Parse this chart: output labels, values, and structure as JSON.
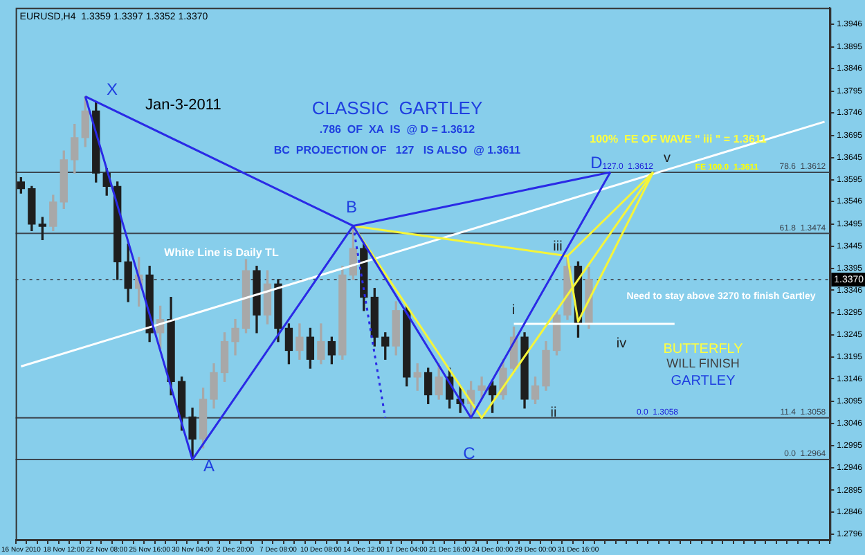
{
  "chart_data": {
    "type": "candlestick",
    "title": "EURUSD,H4  1.3359 1.3397 1.3352 1.3370",
    "colors": [
      "#1e1e1e",
      "#1e1e1e",
      "#1e1e1e",
      "#a8a8a8",
      "#a8a8a8",
      "#a8a8a8",
      "#a8a8a8",
      "#1e1e1e",
      "#1e1e1e",
      "#1e1e1e",
      "#1e1e1e",
      "#a8a8a8",
      "#1e1e1e",
      "#a8a8a8",
      "#1e1e1e",
      "#1e1e1e",
      "#1e1e1e",
      "#a8a8a8",
      "#a8a8a8",
      "#a8a8a8",
      "#a8a8a8",
      "#a8a8a8",
      "#1e1e1e",
      "#a8a8a8",
      "#1e1e1e",
      "#1e1e1e",
      "#a8a8a8",
      "#1e1e1e",
      "#a8a8a8",
      "#1e1e1e",
      "#a8a8a8",
      "#a8a8a8",
      "#1e1e1e",
      "#1e1e1e",
      "#1e1e1e",
      "#a8a8a8",
      "#1e1e1e",
      "#a8a8a8",
      "#1e1e1e",
      "#a8a8a8",
      "#1e1e1e",
      "#1e1e1e",
      "#a8a8a8",
      "#a8a8a8",
      "#1e1e1e",
      "#a8a8a8",
      "#a8a8a8",
      "#1e1e1e",
      "#a8a8a8",
      "#a8a8a8",
      "#a8a8a8",
      "#a8a8a8",
      "#1e1e1e",
      "#a8a8a8",
      null,
      null,
      null,
      null,
      null,
      null,
      null,
      null,
      null,
      null,
      null,
      null,
      null,
      null,
      null,
      null,
      null,
      null,
      null,
      null,
      null,
      null
    ],
    "categories": [
      "16 Nov 2010",
      null,
      null,
      null,
      "18 Nov 12:00",
      null,
      null,
      null,
      "22 Nov 08:00",
      null,
      null,
      null,
      "25 Nov 16:00",
      null,
      null,
      null,
      "30 Nov 04:00",
      null,
      null,
      null,
      "2 Dec 20:00",
      null,
      null,
      null,
      "7 Dec 08:00",
      null,
      null,
      null,
      "10 Dec 08:00",
      null,
      null,
      null,
      "14 Dec 12:00",
      null,
      null,
      null,
      "17 Dec 04:00",
      null,
      null,
      null,
      "21 Dec 16:00",
      null,
      null,
      null,
      "24 Dec 00:00",
      null,
      null,
      null,
      "29 Dec 00:00",
      null,
      null,
      null,
      "31 Dec 16:00",
      null,
      null,
      null,
      null,
      null,
      null,
      null,
      null,
      null,
      null,
      null,
      null,
      null,
      null,
      null,
      null,
      null,
      null,
      null,
      null,
      null,
      null,
      null
    ],
    "ohlc": [
      [
        1.359,
        1.36,
        1.3565,
        1.3575
      ],
      [
        1.3575,
        1.358,
        1.348,
        1.3495
      ],
      [
        1.3495,
        1.351,
        1.346,
        1.349
      ],
      [
        1.349,
        1.356,
        1.348,
        1.3545
      ],
      [
        1.3545,
        1.366,
        1.353,
        1.364
      ],
      [
        1.364,
        1.372,
        1.361,
        1.369
      ],
      [
        1.369,
        1.3783,
        1.367,
        1.375
      ],
      [
        1.375,
        1.377,
        1.359,
        1.361
      ],
      [
        1.361,
        1.362,
        1.356,
        1.358
      ],
      [
        1.358,
        1.359,
        1.337,
        1.341
      ],
      [
        1.341,
        1.345,
        1.332,
        1.335
      ],
      [
        1.335,
        1.342,
        1.331,
        1.338
      ],
      [
        1.338,
        1.34,
        1.323,
        1.325
      ],
      [
        1.325,
        1.331,
        1.3215,
        1.328
      ],
      [
        1.328,
        1.333,
        1.311,
        1.314
      ],
      [
        1.314,
        1.315,
        1.303,
        1.306
      ],
      [
        1.306,
        1.308,
        1.2964,
        1.301
      ],
      [
        1.301,
        1.3125,
        1.299,
        1.31
      ],
      [
        1.31,
        1.318,
        1.308,
        1.316
      ],
      [
        1.316,
        1.325,
        1.314,
        1.323
      ],
      [
        1.323,
        1.328,
        1.32,
        1.326
      ],
      [
        1.326,
        1.3415,
        1.325,
        1.339
      ],
      [
        1.339,
        1.34,
        1.325,
        1.329
      ],
      [
        1.329,
        1.339,
        1.327,
        1.336
      ],
      [
        1.336,
        1.337,
        1.323,
        1.326
      ],
      [
        1.326,
        1.327,
        1.318,
        1.321
      ],
      [
        1.321,
        1.327,
        1.319,
        1.324
      ],
      [
        1.324,
        1.326,
        1.317,
        1.319
      ],
      [
        1.319,
        1.327,
        1.318,
        1.323
      ],
      [
        1.323,
        1.324,
        1.318,
        1.32
      ],
      [
        1.32,
        1.34,
        1.319,
        1.338
      ],
      [
        1.338,
        1.3491,
        1.337,
        1.344
      ],
      [
        1.344,
        1.345,
        1.33,
        1.333
      ],
      [
        1.333,
        1.335,
        1.322,
        1.324
      ],
      [
        1.324,
        1.325,
        1.319,
        1.322
      ],
      [
        1.322,
        1.332,
        1.32,
        1.33
      ],
      [
        1.33,
        1.331,
        1.313,
        1.315
      ],
      [
        1.315,
        1.318,
        1.312,
        1.316
      ],
      [
        1.316,
        1.317,
        1.309,
        1.311
      ],
      [
        1.311,
        1.318,
        1.31,
        1.315
      ],
      [
        1.315,
        1.317,
        1.308,
        1.31
      ],
      [
        1.31,
        1.313,
        1.307,
        1.309
      ],
      [
        1.309,
        1.314,
        1.3058,
        1.312
      ],
      [
        1.312,
        1.315,
        1.31,
        1.313
      ],
      [
        1.313,
        1.314,
        1.307,
        1.311
      ],
      [
        1.311,
        1.319,
        1.31,
        1.317
      ],
      [
        1.317,
        1.3263,
        1.316,
        1.324
      ],
      [
        1.324,
        1.325,
        1.308,
        1.31
      ],
      [
        1.31,
        1.315,
        1.309,
        1.313
      ],
      [
        1.313,
        1.323,
        1.312,
        1.321
      ],
      [
        1.321,
        1.33,
        1.32,
        1.329
      ],
      [
        1.329,
        1.3423,
        1.328,
        1.34
      ],
      [
        1.34,
        1.341,
        1.324,
        1.327
      ],
      [
        1.327,
        1.3397,
        1.326,
        1.337
      ],
      null,
      null,
      null,
      null,
      null,
      null,
      null,
      null,
      null,
      null,
      null,
      null,
      null,
      null,
      null,
      null,
      null,
      null,
      null,
      null,
      null,
      null
    ],
    "series": [
      {
        "type": "line",
        "color": "#2a2ae6",
        "values": [
          null,
          null,
          null,
          null,
          null,
          null,
          1.3783,
          null,
          null,
          null,
          null,
          null,
          null,
          null,
          null,
          null,
          1.2964,
          null,
          null,
          null,
          null,
          null,
          null,
          null,
          null,
          null,
          null,
          null,
          null,
          null,
          null,
          1.3491,
          null,
          null,
          null,
          null,
          null,
          null,
          null,
          null,
          null,
          null,
          1.3058,
          null,
          null,
          null,
          null,
          null,
          null,
          null,
          null,
          null,
          null,
          null,
          null,
          1.3612,
          null,
          null,
          null,
          null,
          null,
          null,
          null,
          null,
          null,
          null,
          null,
          null,
          null,
          null,
          null,
          null,
          null,
          null,
          null,
          null
        ]
      },
      {
        "type": "line",
        "color": "#2a2ae6",
        "values": [
          null,
          null,
          null,
          null,
          null,
          null,
          1.3783,
          null,
          null,
          null,
          null,
          null,
          null,
          null,
          null,
          null,
          null,
          null,
          null,
          null,
          null,
          null,
          null,
          null,
          null,
          null,
          null,
          null,
          null,
          null,
          null,
          1.3491,
          null,
          null,
          null,
          null,
          null,
          null,
          null,
          null,
          null,
          null,
          null,
          null,
          null,
          null,
          null,
          null,
          null,
          null,
          null,
          null,
          null,
          null,
          null,
          1.3612,
          null,
          null,
          null,
          null,
          null,
          null,
          null,
          null,
          null,
          null,
          null,
          null,
          null,
          null,
          null,
          null,
          null,
          null,
          null,
          null
        ]
      },
      {
        "type": "line",
        "color": "#2a2ae6",
        "line_style": "dotted",
        "values": [
          null,
          null,
          null,
          null,
          null,
          null,
          null,
          null,
          null,
          null,
          null,
          null,
          null,
          null,
          null,
          null,
          null,
          null,
          null,
          null,
          null,
          null,
          null,
          null,
          null,
          null,
          null,
          null,
          null,
          null,
          null,
          1.3491,
          null,
          null,
          1.3058,
          null,
          null,
          null,
          null,
          null,
          null,
          null,
          null,
          null,
          null,
          null,
          null,
          null,
          null,
          null,
          null,
          null,
          null,
          null,
          null,
          null,
          null,
          null,
          null,
          null,
          null,
          null,
          null,
          null,
          null,
          null,
          null,
          null,
          null,
          null,
          null,
          null,
          null,
          null,
          null,
          null
        ]
      },
      {
        "type": "line",
        "color": "#f5f53a",
        "values": [
          null,
          null,
          null,
          null,
          null,
          null,
          null,
          null,
          null,
          null,
          null,
          null,
          null,
          null,
          null,
          null,
          null,
          null,
          null,
          null,
          null,
          null,
          null,
          null,
          null,
          null,
          null,
          null,
          null,
          null,
          null,
          1.3491,
          null,
          null,
          null,
          null,
          null,
          null,
          null,
          null,
          null,
          null,
          null,
          1.3058,
          null,
          null,
          null,
          null,
          null,
          null,
          null,
          null,
          null,
          null,
          null,
          null,
          null,
          null,
          null,
          1.3612,
          null,
          null,
          null,
          null,
          null,
          null,
          null,
          null,
          null,
          null,
          null,
          null,
          null,
          null,
          null,
          null
        ]
      },
      {
        "type": "line",
        "color": "#f5f53a",
        "values": [
          null,
          null,
          null,
          null,
          null,
          null,
          null,
          null,
          null,
          null,
          null,
          null,
          null,
          null,
          null,
          null,
          null,
          null,
          null,
          null,
          null,
          null,
          null,
          null,
          null,
          null,
          null,
          null,
          null,
          null,
          null,
          1.3491,
          null,
          null,
          null,
          null,
          null,
          null,
          null,
          null,
          null,
          null,
          null,
          null,
          null,
          null,
          null,
          null,
          null,
          null,
          null,
          1.3423,
          1.3275,
          null,
          null,
          null,
          null,
          null,
          null,
          1.3612,
          null,
          null,
          null,
          null,
          null,
          null,
          null,
          null,
          null,
          null,
          null,
          null,
          null,
          null,
          null,
          null
        ]
      },
      {
        "type": "line",
        "color": "#f5f53a",
        "values": [
          null,
          null,
          null,
          null,
          null,
          null,
          null,
          null,
          null,
          null,
          null,
          null,
          null,
          null,
          null,
          null,
          null,
          null,
          null,
          null,
          null,
          null,
          null,
          null,
          null,
          null,
          null,
          null,
          null,
          null,
          null,
          null,
          null,
          null,
          null,
          null,
          null,
          null,
          null,
          null,
          null,
          null,
          null,
          null,
          null,
          null,
          null,
          null,
          null,
          null,
          null,
          1.3423,
          null,
          null,
          null,
          null,
          null,
          null,
          null,
          1.3612,
          null,
          null,
          null,
          null,
          null,
          null,
          null,
          null,
          null,
          null,
          null,
          null,
          null,
          null,
          null,
          null
        ]
      },
      {
        "type": "line",
        "color": "#ffffff",
        "values": [
          1.3174,
          null,
          null,
          null,
          null,
          null,
          null,
          null,
          null,
          null,
          null,
          null,
          null,
          null,
          null,
          null,
          null,
          null,
          null,
          null,
          null,
          null,
          null,
          null,
          null,
          null,
          null,
          null,
          null,
          null,
          null,
          null,
          null,
          null,
          null,
          null,
          null,
          null,
          null,
          null,
          null,
          null,
          null,
          null,
          null,
          null,
          null,
          null,
          null,
          null,
          null,
          null,
          null,
          null,
          null,
          null,
          null,
          null,
          null,
          null,
          null,
          null,
          null,
          null,
          null,
          null,
          null,
          null,
          null,
          null,
          null,
          null,
          null,
          null,
          null,
          1.3726
        ]
      },
      {
        "type": "line",
        "color": "#ffffff",
        "values": [
          null,
          null,
          null,
          null,
          null,
          null,
          null,
          null,
          null,
          null,
          null,
          null,
          null,
          null,
          null,
          null,
          null,
          null,
          null,
          null,
          null,
          null,
          null,
          null,
          null,
          null,
          null,
          null,
          null,
          null,
          null,
          null,
          null,
          null,
          null,
          null,
          null,
          null,
          null,
          null,
          null,
          null,
          null,
          null,
          null,
          null,
          1.327,
          null,
          null,
          null,
          null,
          null,
          null,
          null,
          null,
          null,
          null,
          null,
          null,
          null,
          null,
          1.327,
          null,
          null,
          null,
          null,
          null,
          null,
          null,
          null,
          null,
          null,
          null,
          null,
          null,
          null
        ]
      }
    ],
    "ref_lines": [
      {
        "axis": "y",
        "value": 1.3612,
        "label": "78.6  1.3612",
        "color": "#3c4650"
      },
      {
        "axis": "y",
        "value": 1.3474,
        "label": "61.8  1.3474",
        "color": "#3c4650"
      },
      {
        "axis": "y",
        "value": 1.3058,
        "label": "11.4  1.3058",
        "color": "#3c4650"
      },
      {
        "axis": "y",
        "value": 1.2964,
        "label": "0.0  1.2964",
        "color": "#3c4650"
      },
      {
        "axis": "y",
        "value": 1.337,
        "label": "1.3370",
        "color": "#4a5a68",
        "line_style": "dotted"
      }
    ],
    "annotations": [
      "Jan-3-2011",
      "CLASSIC  GARTLEY",
      ".786  OF  XA  IS  @ D = 1.3612",
      "BC  PROJECTION OF   127   IS ALSO  @ 1.3611",
      "100%  FE OF WAVE \" iii \" = 1.3611",
      "White Line is Daily TL",
      "Need to stay above 3270 to finish Gartley",
      "BUTTERFLY",
      "WILL FINISH",
      "GARTLEY",
      "X",
      "A",
      "B",
      "C",
      "D",
      "i",
      "ii",
      "iii",
      "iv",
      "v",
      {
        "text": "127.0  1.3612",
        "y": 1.3612
      },
      {
        "text": "FE 100.0  1.3611",
        "y": 1.3611
      },
      {
        "text": "0.0  1.3058",
        "y": 1.3058
      }
    ],
    "ylim": [
      1.2783,
      1.3983
    ],
    "yticks": [
      1.2796,
      1.2846,
      1.2895,
      1.2946,
      1.2995,
      1.3046,
      1.3095,
      1.3146,
      1.3195,
      1.3245,
      1.3295,
      1.3346,
      1.3395,
      1.3445,
      1.3495,
      1.3546,
      1.3595,
      1.3645,
      1.3695,
      1.3746,
      1.3795,
      1.3846,
      1.3895,
      1.3946
    ]
  }
}
